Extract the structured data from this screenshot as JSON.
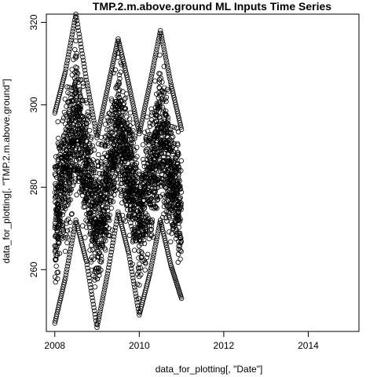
{
  "chart_data": {
    "type": "scatter",
    "title": "TMP.2.m.above.ground ML Inputs Time Series",
    "xlabel": "data_for_plotting[, \"Date\"]",
    "ylabel": "data_for_plotting[, \"TMP.2.m.above.ground\"]",
    "xlim": [
      2007.8,
      2015.2
    ],
    "ylim": [
      245,
      322
    ],
    "x_ticks": [
      2008,
      2010,
      2012,
      2014
    ],
    "x_tick_labels": [
      "2008",
      "2010",
      "2012",
      "2014"
    ],
    "y_ticks": [
      260,
      280,
      300,
      320
    ],
    "y_tick_labels": [
      "260",
      "280",
      "300",
      "320"
    ],
    "grid": false,
    "marker": "open-circle",
    "color": "#000000",
    "series_envelope": {
      "x": [
        2008.0,
        2008.25,
        2008.5,
        2008.75,
        2009.0,
        2009.25,
        2009.5,
        2009.75,
        2010.0,
        2010.25,
        2010.5,
        2010.75,
        2011.0
      ],
      "y_min": [
        247,
        258,
        272,
        262,
        246,
        259,
        274,
        264,
        249,
        259,
        272,
        261,
        253
      ],
      "y_max": [
        298,
        308,
        322,
        306,
        292,
        304,
        316,
        305,
        293,
        305,
        318,
        305,
        294
      ]
    }
  }
}
